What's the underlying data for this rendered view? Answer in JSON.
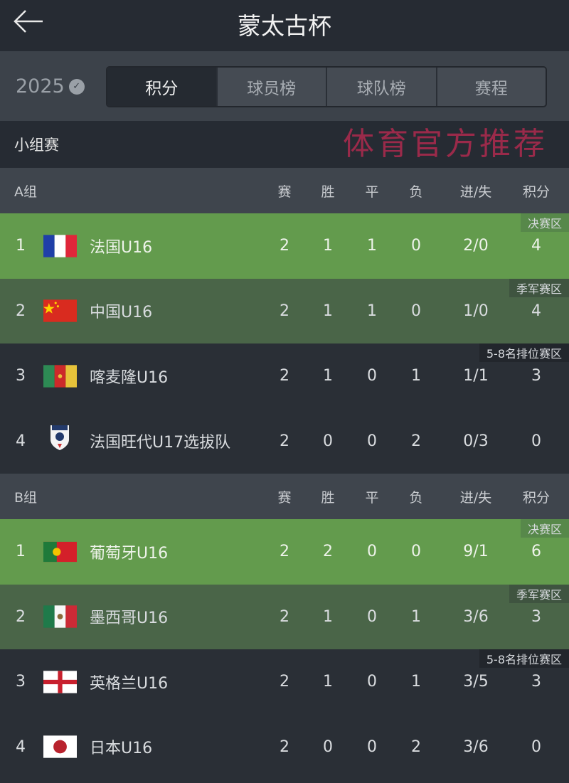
{
  "header": {
    "title": "蒙太古杯"
  },
  "toolbar": {
    "year": "2025",
    "tabs": [
      "积分",
      "球员榜",
      "球队榜",
      "赛程"
    ],
    "active_tab": "积分"
  },
  "section": "小组赛",
  "columns": [
    "赛",
    "胜",
    "平",
    "负",
    "进/失",
    "积分"
  ],
  "groups": [
    {
      "label": "A组",
      "rows": [
        {
          "rank": "1",
          "team": "法国U16",
          "flag": "france",
          "p": "2",
          "w": "1",
          "d": "1",
          "l": "0",
          "gf_ga": "2/0",
          "pts": "4",
          "zone": "决赛区",
          "zone_type": "final"
        },
        {
          "rank": "2",
          "team": "中国U16",
          "flag": "china",
          "p": "2",
          "w": "1",
          "d": "1",
          "l": "0",
          "gf_ga": "1/0",
          "pts": "4",
          "zone": "季军赛区",
          "zone_type": "third"
        },
        {
          "rank": "3",
          "team": "喀麦隆U16",
          "flag": "cameroon",
          "p": "2",
          "w": "1",
          "d": "0",
          "l": "1",
          "gf_ga": "1/1",
          "pts": "3",
          "zone": "5-8名排位赛区",
          "zone_type": "other"
        },
        {
          "rank": "4",
          "team": "法国旺代U17选拔队",
          "flag": "club-crest",
          "p": "2",
          "w": "0",
          "d": "0",
          "l": "2",
          "gf_ga": "0/3",
          "pts": "0",
          "zone": "",
          "zone_type": "other"
        }
      ]
    },
    {
      "label": "B组",
      "rows": [
        {
          "rank": "1",
          "team": "葡萄牙U16",
          "flag": "portugal",
          "p": "2",
          "w": "2",
          "d": "0",
          "l": "0",
          "gf_ga": "9/1",
          "pts": "6",
          "zone": "决赛区",
          "zone_type": "final"
        },
        {
          "rank": "2",
          "team": "墨西哥U16",
          "flag": "mexico",
          "p": "2",
          "w": "1",
          "d": "0",
          "l": "1",
          "gf_ga": "3/6",
          "pts": "3",
          "zone": "季军赛区",
          "zone_type": "third"
        },
        {
          "rank": "3",
          "team": "英格兰U16",
          "flag": "england",
          "p": "2",
          "w": "1",
          "d": "0",
          "l": "1",
          "gf_ga": "3/5",
          "pts": "3",
          "zone": "5-8名排位赛区",
          "zone_type": "other"
        },
        {
          "rank": "4",
          "team": "日本U16",
          "flag": "japan",
          "p": "2",
          "w": "0",
          "d": "0",
          "l": "2",
          "gf_ga": "3/6",
          "pts": "0",
          "zone": "",
          "zone_type": "other"
        }
      ]
    }
  ],
  "watermark": "体育官方推荐",
  "colors": {
    "final": "#639b4d",
    "third": "#4a6548",
    "background": "#2a2f36"
  }
}
